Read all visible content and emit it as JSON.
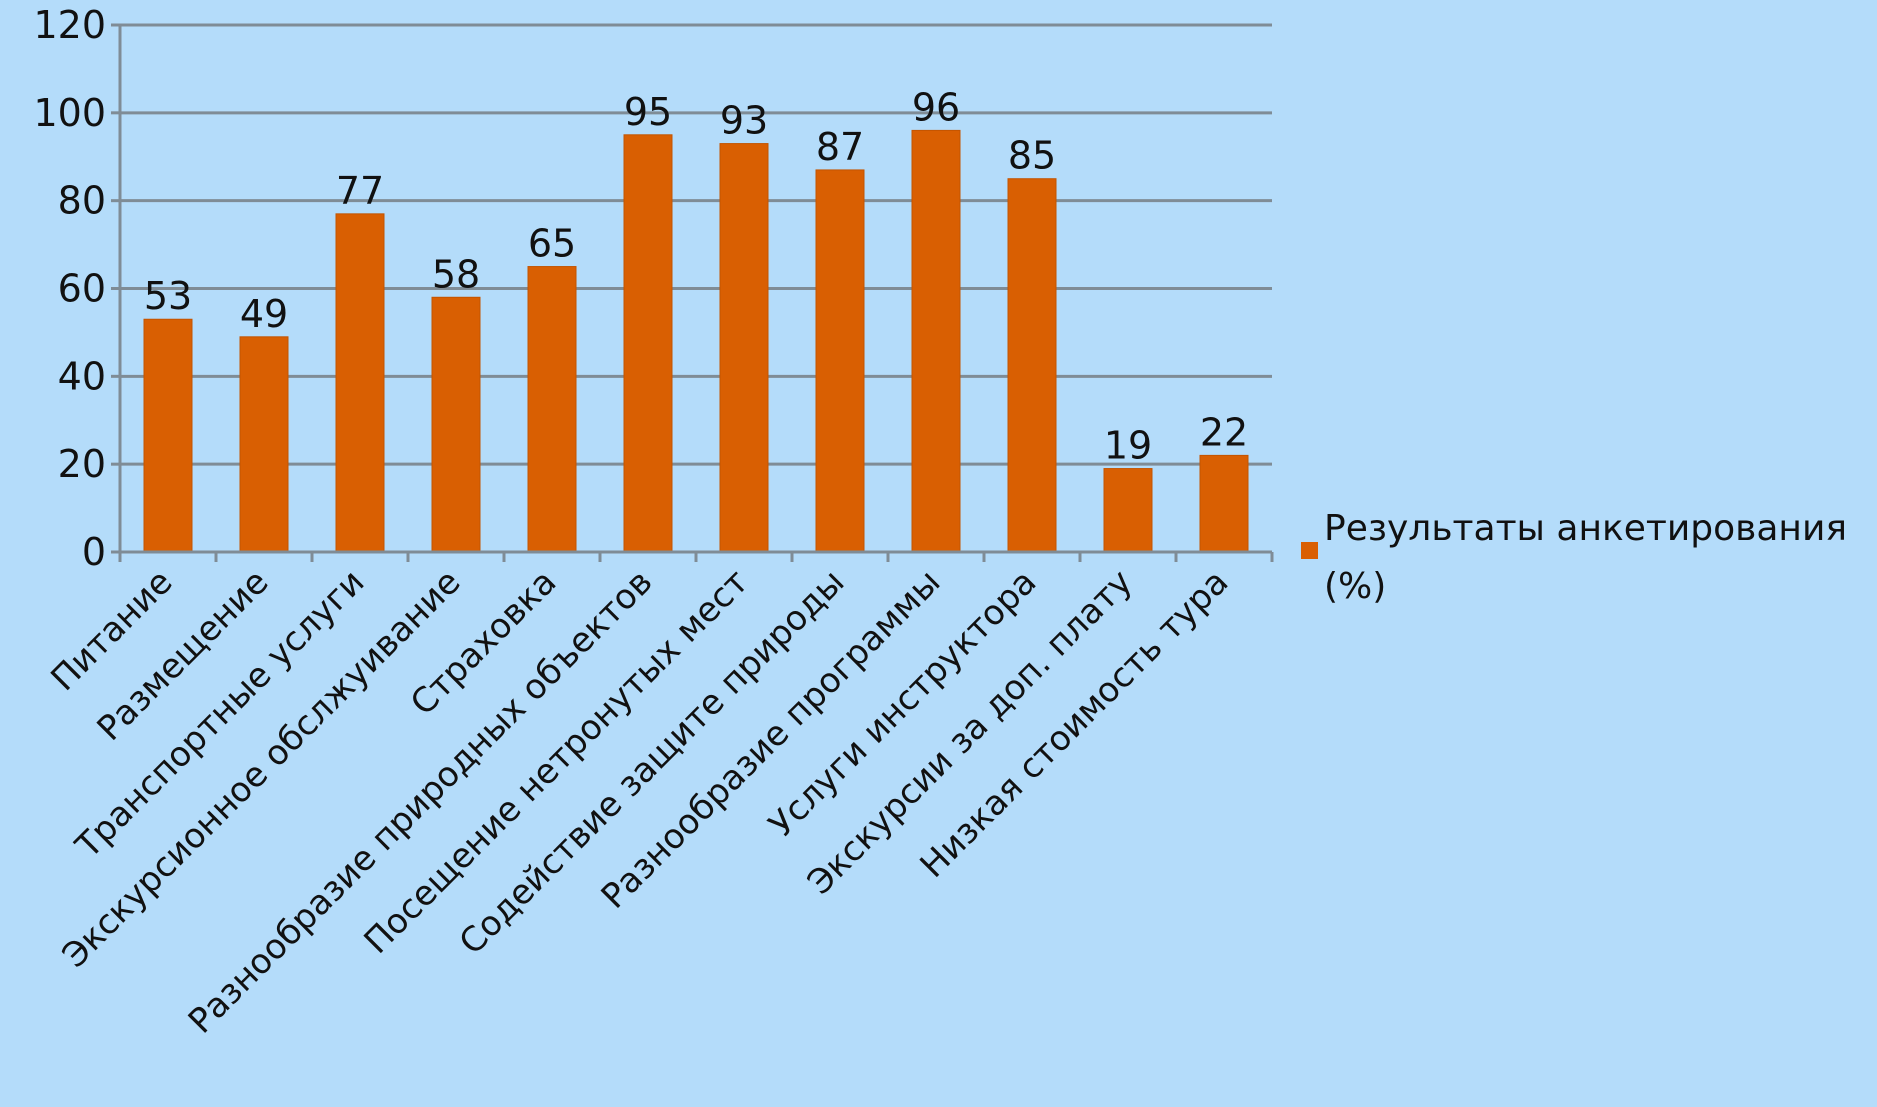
{
  "chart_data": {
    "type": "bar",
    "categories": [
      "Питание",
      "Размещение",
      "Транспортные услуги",
      "Экскурсионное обслжуивание",
      "Страховка",
      "Разнообразие природных объектов",
      "Посещение нетронутых мест",
      "Содействие защите природы",
      "Разнообразие программы",
      "Услуги инструктора",
      "Экскурсии за доп. плату",
      "Низкая стоимость тура"
    ],
    "series": [
      {
        "name": "Результаты анкетирования (%)",
        "values": [
          53,
          49,
          77,
          58,
          65,
          95,
          93,
          87,
          96,
          85,
          19,
          22
        ],
        "color": "#d95f02"
      }
    ],
    "ylim": [
      0,
      120
    ],
    "yticks": [
      0,
      20,
      40,
      60,
      80,
      100,
      120
    ],
    "grid": true,
    "legend_position": "right",
    "legend_lines": [
      "Результаты анкетирования",
      "(%)"
    ]
  }
}
